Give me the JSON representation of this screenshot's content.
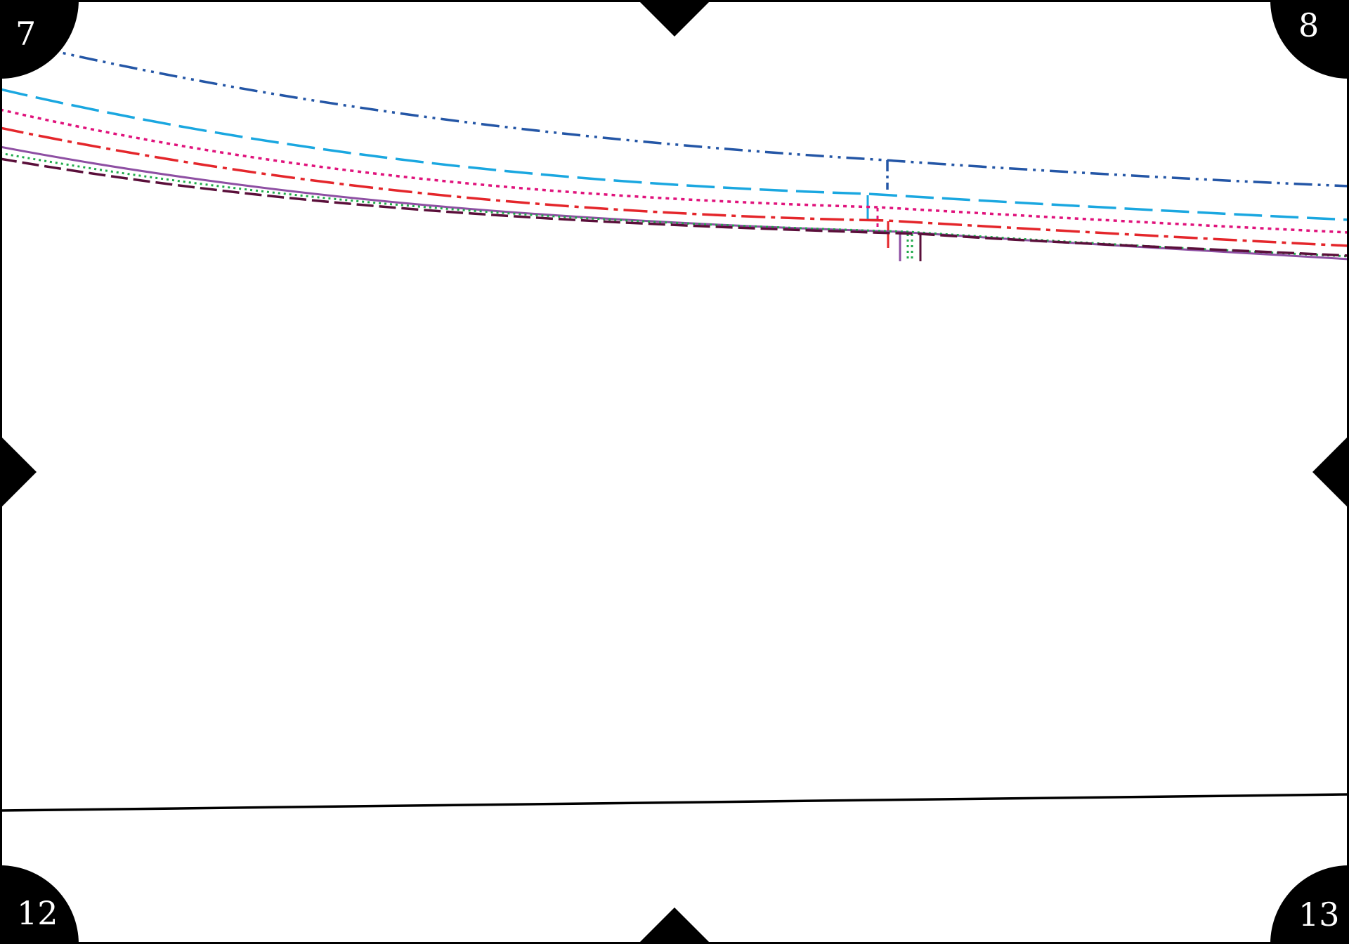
{
  "page_labels": {
    "top_left": "7",
    "top_right": "8",
    "bottom_left": "12",
    "bottom_right": "13"
  },
  "colors": {
    "frame": "#000000",
    "marks": "#000000",
    "background": "#ffffff",
    "line_dark_blue": "#2456a6",
    "line_light_blue": "#1aa7e0",
    "line_magenta": "#e0137c",
    "line_red": "#e4262b",
    "line_purple": "#8e4fa3",
    "line_green": "#1faa4a",
    "line_maroon": "#5a0f3a"
  },
  "line_styles": [
    "dash-dot-dot",
    "long-dash",
    "dotted",
    "dash-dot",
    "solid",
    "dotted",
    "dash"
  ]
}
